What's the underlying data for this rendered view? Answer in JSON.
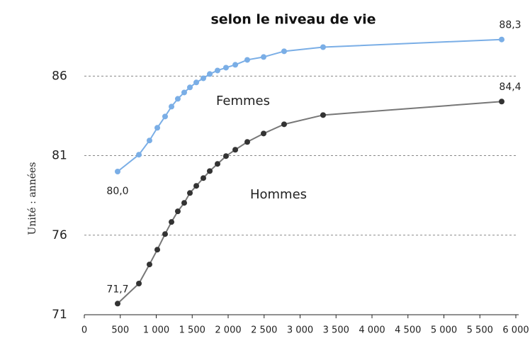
{
  "chart_data": {
    "type": "line",
    "title": "selon le niveau de vie",
    "y_label": "Unité : années",
    "x": [
      463,
      759,
      906,
      1015,
      1123,
      1212,
      1300,
      1389,
      1468,
      1557,
      1655,
      1744,
      1852,
      1970,
      2099,
      2266,
      2493,
      2778,
      3320,
      5803
    ],
    "series": [
      {
        "name": "Femmes",
        "color": "#7aaee6",
        "line_color": "#7aaee6",
        "values": [
          80.0,
          81.06,
          81.95,
          82.75,
          83.46,
          84.08,
          84.57,
          84.97,
          85.29,
          85.6,
          85.86,
          86.13,
          86.35,
          86.53,
          86.71,
          87.02,
          87.2,
          87.56,
          87.82,
          88.3
        ],
        "value_labels": [
          "80,0",
          null,
          null,
          null,
          null,
          null,
          null,
          null,
          null,
          null,
          null,
          null,
          null,
          null,
          null,
          null,
          null,
          null,
          null,
          "88,3"
        ]
      },
      {
        "name": "Hommes",
        "color": "#333333",
        "line_color": "#777777",
        "values": [
          71.7,
          72.96,
          74.16,
          75.09,
          76.07,
          76.83,
          77.5,
          78.03,
          78.65,
          79.1,
          79.59,
          80.03,
          80.48,
          80.97,
          81.37,
          81.86,
          82.39,
          82.97,
          83.55,
          84.4
        ],
        "value_labels": [
          "71,7",
          null,
          null,
          null,
          null,
          null,
          null,
          null,
          null,
          null,
          null,
          null,
          null,
          null,
          null,
          null,
          null,
          null,
          null,
          "84,4"
        ]
      }
    ],
    "xlim": [
      0,
      6000
    ],
    "xticks": [
      0,
      500,
      {
        "value": 1000,
        "label": "1 000"
      },
      {
        "value": 1500,
        "label": "1 500"
      },
      {
        "value": 2000,
        "label": "2 000"
      },
      {
        "value": 2500,
        "label": "2 500"
      },
      {
        "value": 3000,
        "label": "3 000"
      },
      {
        "value": 3500,
        "label": "3 500"
      },
      {
        "value": 4000,
        "label": "4 000"
      },
      {
        "value": 4500,
        "label": "4 500"
      },
      {
        "value": 5000,
        "label": "5 000"
      },
      {
        "value": 5500,
        "label": "5 500"
      },
      {
        "value": 6000,
        "label": "6 000"
      }
    ],
    "ylim": [
      71,
      89
    ],
    "yticks": [
      71,
      76,
      81,
      86
    ],
    "grid": true
  }
}
